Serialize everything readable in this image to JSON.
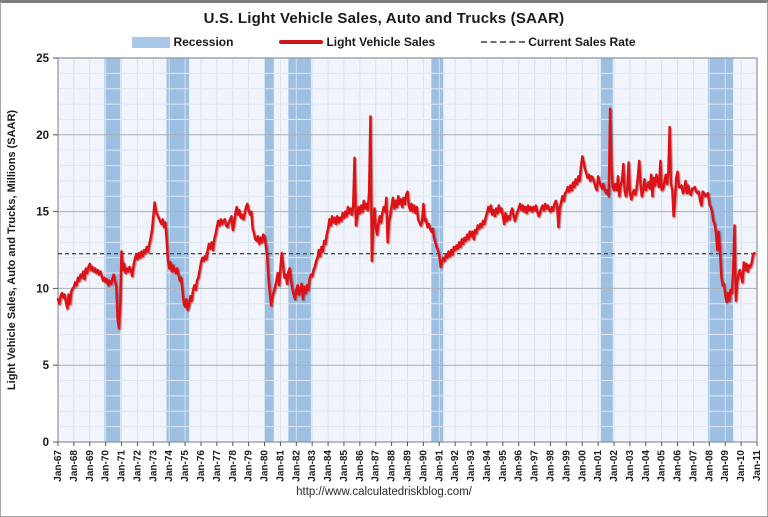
{
  "title": "U.S. Light Vehicle Sales, Auto and Trucks (SAAR)",
  "footer_url": "http://www.calculatedriskblog.com/",
  "legend": {
    "items": [
      {
        "label": "Recession",
        "swatch": "band"
      },
      {
        "label": "Light Vehicle Sales",
        "swatch": "line"
      },
      {
        "label": "Current Sales Rate",
        "swatch": "dash"
      }
    ]
  },
  "y_axis": {
    "title": "Light Vehicle Sales, Auto and Trucks, Millions (SAAR)",
    "ticks": [
      0,
      5,
      10,
      15,
      20,
      25
    ],
    "min": 0,
    "max": 25
  },
  "x_axis": {
    "start_year": 1967,
    "end_year": 2011,
    "labels": [
      "Jan-67",
      "Jan-68",
      "Jan-69",
      "Jan-70",
      "Jan-71",
      "Jan-72",
      "Jan-73",
      "Jan-74",
      "Jan-75",
      "Jan-76",
      "Jan-77",
      "Jan-78",
      "Jan-79",
      "Jan-80",
      "Jan-81",
      "Jan-82",
      "Jan-83",
      "Jan-84",
      "Jan-85",
      "Jan-86",
      "Jan-87",
      "Jan-88",
      "Jan-89",
      "Jan-90",
      "Jan-91",
      "Jan-92",
      "Jan-93",
      "Jan-94",
      "Jan-95",
      "Jan-96",
      "Jan-97",
      "Jan-98",
      "Jan-99",
      "Jan-00",
      "Jan-01",
      "Jan-02",
      "Jan-03",
      "Jan-04",
      "Jan-05",
      "Jan-06",
      "Jan-07",
      "Jan-08",
      "Jan-09",
      "Jan-10",
      "Jan-11"
    ]
  },
  "chart_data": {
    "type": "line",
    "title": "U.S. Light Vehicle Sales, Auto and Trucks (SAAR)",
    "series_name": "Light Vehicle Sales",
    "unit": "Millions (SAAR)",
    "frequency": "monthly",
    "start": "Jan-1967",
    "end": "Nov-2010",
    "ylim": [
      0,
      25
    ],
    "grid": true,
    "legend_position": "top",
    "current_sales_rate": 12.26,
    "recessions": [
      [
        1969.92,
        1970.92
      ],
      [
        1973.83,
        1975.25
      ],
      [
        1980.0,
        1980.58
      ],
      [
        1981.5,
        1982.92
      ],
      [
        1990.5,
        1991.25
      ],
      [
        2001.17,
        2001.92
      ],
      [
        2007.92,
        2009.5
      ]
    ],
    "monthly_by_year": {
      "1967": [
        9.3,
        9.0,
        9.5,
        9.7,
        9.4,
        9.6,
        9.1,
        8.7,
        9.6,
        9.0,
        9.8,
        10.0
      ],
      "1968": [
        10.1,
        10.4,
        10.2,
        10.7,
        10.5,
        10.9,
        10.7,
        11.1,
        10.6,
        11.3,
        11.0,
        11.4
      ],
      "1969": [
        11.6,
        11.2,
        11.4,
        11.1,
        11.3,
        11.0,
        11.2,
        10.9,
        11.1,
        10.8,
        10.5,
        10.7
      ],
      "1970": [
        10.4,
        10.6,
        10.2,
        10.5,
        10.3,
        10.6,
        10.9,
        10.5,
        10.1,
        8.0,
        7.4,
        9.0
      ],
      "1971": [
        12.4,
        11.2,
        11.6,
        11.0,
        11.3,
        11.1,
        11.4,
        11.2,
        10.8,
        11.5,
        11.9,
        12.2
      ],
      "1972": [
        11.9,
        12.3,
        12.0,
        12.4,
        12.1,
        12.5,
        12.3,
        12.7,
        12.4,
        12.9,
        13.3,
        13.8
      ],
      "1973": [
        14.7,
        15.6,
        15.0,
        14.8,
        14.6,
        14.4,
        14.2,
        14.5,
        14.0,
        14.3,
        13.2,
        11.8
      ],
      "1974": [
        11.3,
        11.7,
        11.1,
        11.5,
        11.2,
        11.0,
        11.3,
        10.9,
        10.5,
        10.7,
        9.9,
        9.0
      ],
      "1975": [
        8.8,
        9.3,
        8.6,
        8.9,
        9.5,
        9.2,
        9.9,
        10.2,
        9.9,
        10.5,
        10.7,
        11.2
      ],
      "1976": [
        11.7,
        12.0,
        11.8,
        12.1,
        11.9,
        12.5,
        12.9,
        12.6,
        13.0,
        12.5,
        13.2,
        13.5
      ],
      "1977": [
        14.0,
        14.4,
        14.1,
        14.5,
        14.2,
        14.4,
        14.5,
        14.1,
        14.0,
        14.3,
        14.5,
        14.7
      ],
      "1978": [
        13.8,
        14.3,
        14.9,
        15.3,
        14.8,
        15.1,
        14.6,
        14.8,
        14.5,
        14.9,
        15.3,
        15.5
      ],
      "1979": [
        15.1,
        14.8,
        15.0,
        13.9,
        13.6,
        13.2,
        13.1,
        13.4,
        12.9,
        13.3,
        13.0,
        13.5
      ],
      "1980": [
        13.4,
        12.8,
        12.1,
        10.6,
        9.7,
        8.9,
        9.5,
        9.8,
        10.1,
        10.5,
        11.0,
        10.2
      ],
      "1981": [
        11.3,
        12.3,
        11.5,
        10.7,
        10.9,
        10.3,
        11.1,
        11.3,
        10.5,
        10.0,
        9.6,
        9.3
      ],
      "1982": [
        9.9,
        10.2,
        9.6,
        9.9,
        10.3,
        9.3,
        10.1,
        9.7,
        10.2,
        9.9,
        10.6,
        10.9
      ],
      "1983": [
        10.8,
        11.2,
        11.4,
        11.8,
        12.0,
        12.5,
        12.1,
        12.7,
        12.4,
        13.1,
        12.9,
        13.5
      ],
      "1984": [
        13.9,
        14.5,
        14.1,
        14.7,
        14.3,
        14.6,
        14.2,
        14.7,
        14.3,
        14.6,
        14.4,
        14.9
      ],
      "1985": [
        14.6,
        15.0,
        14.7,
        15.3,
        14.9,
        15.2,
        14.8,
        15.4,
        18.5,
        14.1,
        14.7,
        15.3
      ],
      "1986": [
        14.9,
        15.4,
        15.0,
        15.7,
        15.2,
        15.5,
        15.1,
        16.3,
        21.2,
        11.8,
        14.0,
        15.2
      ],
      "1987": [
        14.0,
        13.5,
        14.2,
        14.7,
        14.3,
        14.9,
        15.3,
        15.0,
        15.9,
        13.0,
        14.4,
        14.8
      ],
      "1988": [
        15.4,
        15.9,
        15.2,
        15.7,
        15.3,
        16.0,
        15.5,
        15.8,
        15.3,
        15.9,
        15.5,
        16.1
      ],
      "1989": [
        16.3,
        15.4,
        15.1,
        15.5,
        15.0,
        15.4,
        14.9,
        15.3,
        14.5,
        14.3,
        14.1,
        14.4
      ],
      "1990": [
        15.5,
        14.4,
        14.5,
        14.0,
        14.2,
        13.9,
        13.7,
        13.9,
        13.3,
        13.0,
        12.7,
        12.5
      ],
      "1991": [
        12.1,
        11.4,
        11.7,
        12.0,
        11.8,
        12.2,
        12.0,
        12.4,
        12.1,
        12.5,
        12.2,
        12.7
      ],
      "1992": [
        12.5,
        12.8,
        12.6,
        13.0,
        12.7,
        13.2,
        12.9,
        13.3,
        13.1,
        13.5,
        13.2,
        13.7
      ],
      "1993": [
        13.4,
        13.7,
        13.2,
        13.8,
        13.6,
        14.1,
        13.9,
        14.2,
        14.0,
        14.4,
        14.2,
        14.6
      ],
      "1994": [
        14.9,
        15.3,
        15.0,
        15.4,
        14.8,
        15.1,
        14.7,
        15.2,
        14.9,
        15.4,
        15.0,
        15.2
      ],
      "1995": [
        14.7,
        14.2,
        14.9,
        14.4,
        14.7,
        14.5,
        14.9,
        15.2,
        14.8,
        14.4,
        14.7,
        15.0
      ],
      "1996": [
        15.2,
        15.5,
        15.1,
        15.4,
        15.0,
        15.3,
        14.9,
        15.4,
        15.1,
        15.3,
        15.0,
        15.3
      ],
      "1997": [
        15.1,
        15.4,
        15.0,
        14.7,
        14.9,
        15.2,
        15.4,
        15.1,
        15.5,
        15.2,
        15.4,
        15.1
      ],
      "1998": [
        15.0,
        15.3,
        15.1,
        15.5,
        15.7,
        15.4,
        14.0,
        15.2,
        15.6,
        16.0,
        15.7,
        16.2
      ],
      "1999": [
        16.3,
        16.6,
        16.3,
        16.7,
        16.4,
        16.9,
        16.6,
        17.1,
        16.8,
        17.3,
        17.0,
        17.9
      ],
      "2000": [
        18.6,
        18.2,
        17.8,
        17.5,
        17.2,
        17.4,
        17.0,
        17.3,
        17.2,
        16.9,
        16.6,
        16.4
      ],
      "2001": [
        17.3,
        16.9,
        16.7,
        16.5,
        16.8,
        16.4,
        16.2,
        16.4,
        16.0,
        21.7,
        17.9,
        16.6
      ],
      "2002": [
        16.4,
        16.8,
        16.4,
        17.3,
        16.0,
        16.7,
        17.0,
        18.1,
        16.4,
        16.0,
        16.5,
        18.2
      ],
      "2003": [
        16.2,
        15.8,
        16.2,
        16.4,
        16.1,
        16.5,
        17.3,
        18.3,
        16.8,
        16.0,
        16.4,
        17.1
      ],
      "2004": [
        16.4,
        16.7,
        16.9,
        16.5,
        17.4,
        16.0,
        17.2,
        16.7,
        17.4,
        17.0,
        16.6,
        18.3
      ],
      "2005": [
        16.4,
        16.5,
        16.9,
        17.4,
        16.8,
        17.6,
        20.5,
        16.8,
        16.4,
        14.7,
        15.8,
        17.2
      ],
      "2006": [
        17.6,
        16.6,
        16.6,
        16.7,
        16.2,
        16.4,
        17.0,
        16.2,
        16.7,
        16.2,
        16.1,
        16.5
      ],
      "2007": [
        16.5,
        16.6,
        16.3,
        16.2,
        16.3,
        15.7,
        15.4,
        16.3,
        16.2,
        16.0,
        16.1,
        16.2
      ],
      "2008": [
        15.5,
        15.3,
        15.0,
        14.4,
        14.2,
        13.6,
        12.5,
        13.7,
        12.5,
        10.8,
        10.2,
        10.3
      ],
      "2009": [
        9.6,
        9.1,
        9.7,
        9.2,
        9.9,
        9.7,
        11.2,
        14.1,
        9.2,
        10.4,
        10.9,
        11.2
      ],
      "2010": [
        10.8,
        10.4,
        11.7,
        11.2,
        11.6,
        11.1,
        11.5,
        11.4,
        11.7,
        12.2,
        12.3
      ]
    }
  },
  "colors": {
    "line": "#dd1217",
    "line_shadow": "#7d0000",
    "recession_band": "#9dbfe2",
    "legend_band": "#a9c7e8",
    "plot_bg": "#f1f5fb",
    "grid_vertical_year": "#d7e1ef",
    "grid_horizontal_minor": "#dfe7f2",
    "grid_horizontal_major": "#aab0b8",
    "plot_border": "#8d939b",
    "dashed_rate": "#4d4d4d",
    "tick": "#555555",
    "text": "#1a1a1a"
  }
}
